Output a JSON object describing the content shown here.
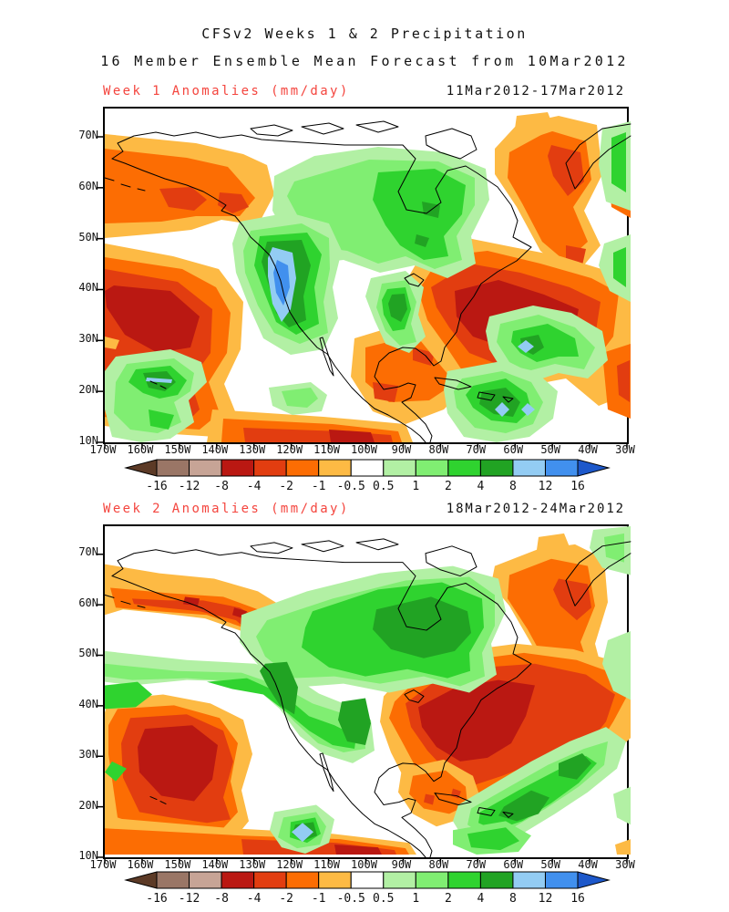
{
  "title": {
    "line1": "CFSv2 Weeks 1 & 2 Precipitation",
    "line2": "16 Member Ensemble Mean Forecast from 10Mar2012"
  },
  "panels": [
    {
      "label": "Week 1 Anomalies (mm/day)",
      "date_range": "11Mar2012-17Mar2012"
    },
    {
      "label": "Week 2 Anomalies (mm/day)",
      "date_range": "18Mar2012-24Mar2012"
    }
  ],
  "axes": {
    "lat_labels": [
      "70N",
      "60N",
      "50N",
      "40N",
      "30N",
      "20N",
      "10N"
    ],
    "lon_labels": [
      "170W",
      "160W",
      "150W",
      "140W",
      "130W",
      "120W",
      "110W",
      "100W",
      "90W",
      "80W",
      "70W",
      "60W",
      "50W",
      "40W",
      "30W"
    ]
  },
  "colorbar": {
    "boundary_labels": [
      "-16",
      "-12",
      "-8",
      "-4",
      "-2",
      "-1",
      "-0.5",
      "0.5",
      "1",
      "2",
      "4",
      "8",
      "12",
      "16"
    ],
    "segment_colors": [
      "#9a7666",
      "#c7a496",
      "#ba1812",
      "#e23d10",
      "#fc6d03",
      "#fdba44",
      "#ffffff",
      "#b2f0a4",
      "#80ee72",
      "#2fd32f",
      "#21a323",
      "#93ccf3",
      "#4190ee"
    ],
    "below_min_arrow_color": "#5c3a26",
    "above_max_arrow_color": "#1d58ca",
    "units": "mm/day"
  },
  "colors": {
    "header_label_red": "#f4453e",
    "text": "#111111",
    "background": "#ffffff",
    "coastline": "#000000"
  },
  "chart_data": {
    "type": "filled-contour-map",
    "variable": "precipitation anomaly",
    "units": "mm/day",
    "model": "CFSv2 16 member ensemble mean forecast",
    "initialized": "10Mar2012",
    "region": {
      "lon_range": [
        "170W",
        "30W"
      ],
      "lat_range": [
        "10N",
        "75N"
      ]
    },
    "contour_levels": [
      -16,
      -12,
      -8,
      -4,
      -2,
      -1,
      -0.5,
      0.5,
      1,
      2,
      4,
      8,
      12,
      16
    ],
    "panels": [
      {
        "title": "Week 1 Anomalies (mm/day)",
        "valid_period": "11Mar2012-17Mar2012",
        "dry_anomaly_regions": [
          "Aleutians and Gulf of Alaska coastal band (cores < -2)",
          "large central North Pacific maximum near 150W 35N (core < -8)",
          "Mexico and Gulf of Mexico (cores < -4)",
          "eastern US / NW Atlantic near 70W 40N (core < -8)",
          "Labrador Sea and Greenland flank (cores < -8)"
        ],
        "wet_anomaly_regions": [
          "interior NW Canada to west of Hudson Bay (cores > 4)",
          "US West Coast strip over California (core > 12)",
          "near Hawaii with thin > 8 sliver",
          "Caribbean / Hispaniola (cores > 8)",
          "central subtropical Atlantic near 55W 27N (core > 8)",
          "strips along eastern map edge"
        ]
      },
      {
        "title": "Week 2 Anomalies (mm/day)",
        "valid_period": "18Mar2012-24Mar2012",
        "dry_anomaly_regions": [
          "Alaska to British Columbia coastal band (cores < -4)",
          "subtropical central North Pacific near 155W 25N (core < -8)",
          "band along 10-12N across the southern edge",
          "large eastern US / western Atlantic maximum near 70W 35N (core < -8)",
          "Labrador Sea / SW Greenland (core < -8)",
          "Cuba and Gulf area (cores < -2)"
        ],
        "wet_anomaly_regions": [
          "broad central Canada (core > 4)",
          "Pacific Northwest coast down to Baja (cores > 4)",
          "small strong cell SW of Mexico near 118W 17N (core > 8)",
          "diagonal subtropical Atlantic band 75W-40W (cores > 4)",
          "Hispaniola / eastern Caribbean band"
        ]
      }
    ]
  }
}
